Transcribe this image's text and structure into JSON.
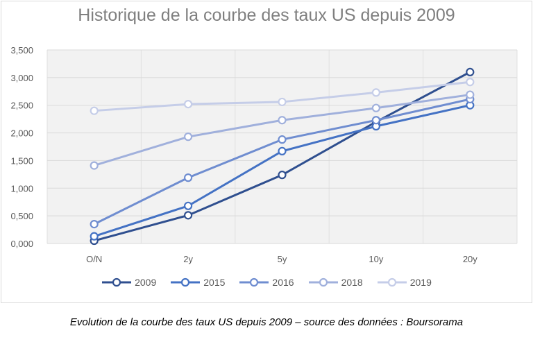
{
  "chart_data": {
    "type": "line",
    "title": "Historique de la courbe des taux US depuis 2009",
    "categories": [
      "O/N",
      "2y",
      "5y",
      "10y",
      "20y"
    ],
    "ylim": [
      0,
      3.5
    ],
    "yticks": [
      "0,000",
      "0,500",
      "1,000",
      "1,500",
      "2,000",
      "2,500",
      "3,000",
      "3,500"
    ],
    "grid": true,
    "legend": "bottom",
    "series": [
      {
        "name": "2009",
        "color": "#2f4f8f",
        "values": [
          0.05,
          0.51,
          1.24,
          2.2,
          3.1
        ]
      },
      {
        "name": "2015",
        "color": "#4472c4",
        "values": [
          0.13,
          0.68,
          1.67,
          2.12,
          2.5
        ]
      },
      {
        "name": "2016",
        "color": "#6f8dd0",
        "values": [
          0.35,
          1.19,
          1.88,
          2.23,
          2.61
        ]
      },
      {
        "name": "2018",
        "color": "#a0b0dc",
        "values": [
          1.41,
          1.93,
          2.23,
          2.45,
          2.69
        ]
      },
      {
        "name": "2019",
        "color": "#c5cde8",
        "values": [
          2.4,
          2.52,
          2.56,
          2.73,
          2.92
        ]
      }
    ]
  },
  "caption": "Evolution de la courbe des taux US depuis 2009 – source des données : Boursorama"
}
